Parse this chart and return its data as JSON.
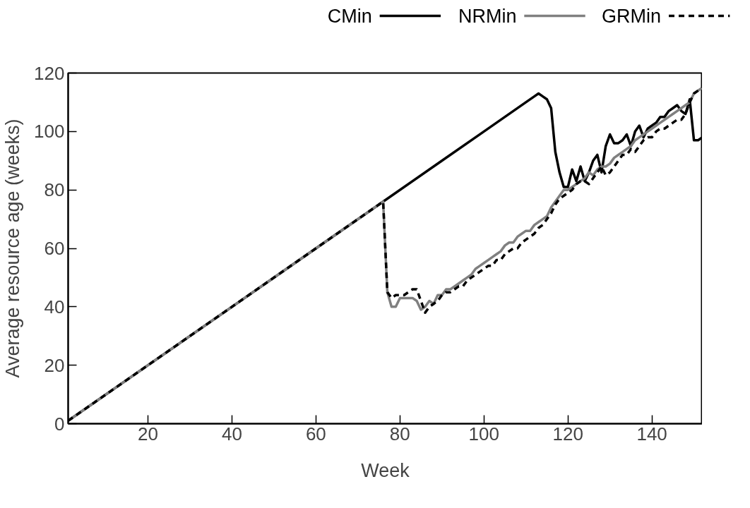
{
  "chart_data": {
    "type": "line",
    "xlabel": "Week",
    "ylabel": "Average resource age (weeks)",
    "xlim": [
      1,
      152
    ],
    "ylim": [
      0,
      120
    ],
    "xticks": [
      20,
      40,
      60,
      80,
      100,
      120,
      140
    ],
    "yticks": [
      0,
      20,
      40,
      60,
      80,
      100,
      120
    ],
    "grid": false,
    "legend": "top",
    "marker": "none",
    "series": [
      {
        "name": "CMin",
        "color": "#000000",
        "line_style": "solid",
        "x": [
          1,
          20,
          40,
          60,
          76,
          90,
          100,
          110,
          112,
          113,
          114,
          115,
          116,
          117,
          118,
          119,
          120,
          121,
          122,
          123,
          124,
          125,
          126,
          127,
          128,
          129,
          130,
          131,
          132,
          133,
          134,
          135,
          136,
          137,
          138,
          139,
          140,
          141,
          142,
          143,
          144,
          145,
          146,
          147,
          148,
          149,
          150,
          151,
          152
        ],
        "values": [
          1,
          20,
          40,
          60,
          76,
          90,
          100,
          110,
          112,
          113,
          112,
          111,
          108,
          93,
          86,
          81,
          81,
          87,
          83,
          88,
          83,
          86,
          90,
          92,
          86,
          95,
          99,
          96,
          96,
          97,
          99,
          95,
          100,
          102,
          98,
          101,
          102,
          103,
          105,
          105,
          107,
          108,
          109,
          107,
          106,
          111,
          97,
          97,
          98
        ]
      },
      {
        "name": "NRMin",
        "color": "#808080",
        "line_style": "solid",
        "x": [
          1,
          20,
          40,
          60,
          76,
          77,
          78,
          79,
          80,
          81,
          82,
          83,
          84,
          85,
          86,
          87,
          88,
          89,
          90,
          91,
          92,
          93,
          94,
          95,
          96,
          97,
          98,
          99,
          100,
          101,
          102,
          103,
          104,
          105,
          106,
          107,
          108,
          109,
          110,
          111,
          112,
          113,
          114,
          115,
          116,
          117,
          118,
          119,
          120,
          121,
          122,
          123,
          124,
          125,
          126,
          127,
          128,
          129,
          130,
          131,
          132,
          133,
          134,
          135,
          136,
          137,
          138,
          139,
          140,
          141,
          142,
          143,
          144,
          145,
          146,
          147,
          148,
          149,
          150,
          151,
          152
        ],
        "values": [
          1,
          20,
          40,
          60,
          76,
          45,
          40,
          40,
          43,
          43,
          43,
          43,
          42,
          39,
          40,
          42,
          41,
          44,
          44,
          46,
          46,
          47,
          48,
          49,
          50,
          51,
          53,
          54,
          55,
          56,
          57,
          58,
          59,
          61,
          62,
          62,
          64,
          65,
          66,
          66,
          68,
          69,
          70,
          71,
          74,
          76,
          78,
          80,
          80,
          81,
          82,
          83,
          84,
          86,
          85,
          87,
          88,
          88,
          89,
          91,
          92,
          93,
          94,
          95,
          97,
          98,
          99,
          100,
          101,
          102,
          103,
          104,
          105,
          106,
          107,
          108,
          109,
          110,
          113,
          114,
          115
        ]
      },
      {
        "name": "GRMin",
        "color": "#000000",
        "line_style": "dashed",
        "x": [
          1,
          20,
          40,
          60,
          76,
          77,
          78,
          79,
          80,
          81,
          82,
          83,
          84,
          85,
          86,
          87,
          88,
          89,
          90,
          91,
          92,
          93,
          94,
          95,
          96,
          97,
          98,
          99,
          100,
          101,
          102,
          103,
          104,
          105,
          106,
          107,
          108,
          109,
          110,
          111,
          112,
          113,
          114,
          115,
          116,
          117,
          118,
          119,
          120,
          121,
          122,
          123,
          124,
          125,
          126,
          127,
          128,
          129,
          130,
          131,
          132,
          133,
          134,
          135,
          136,
          137,
          138,
          139,
          140,
          141,
          142,
          143,
          144,
          145,
          146,
          147,
          148,
          149,
          150,
          151,
          152
        ],
        "values": [
          1,
          20,
          40,
          60,
          76,
          45,
          43,
          44,
          44,
          44,
          45,
          46,
          46,
          42,
          38,
          40,
          41,
          42,
          44,
          45,
          45,
          46,
          47,
          47,
          49,
          50,
          51,
          52,
          53,
          54,
          54,
          56,
          56,
          58,
          59,
          60,
          60,
          62,
          63,
          64,
          65,
          67,
          68,
          70,
          72,
          75,
          77,
          78,
          79,
          80,
          82,
          83,
          83,
          82,
          84,
          86,
          88,
          85,
          86,
          88,
          90,
          92,
          92,
          94,
          93,
          95,
          97,
          98,
          98,
          100,
          101,
          101,
          102,
          103,
          104,
          104,
          106,
          110,
          113,
          114,
          115
        ]
      }
    ]
  }
}
